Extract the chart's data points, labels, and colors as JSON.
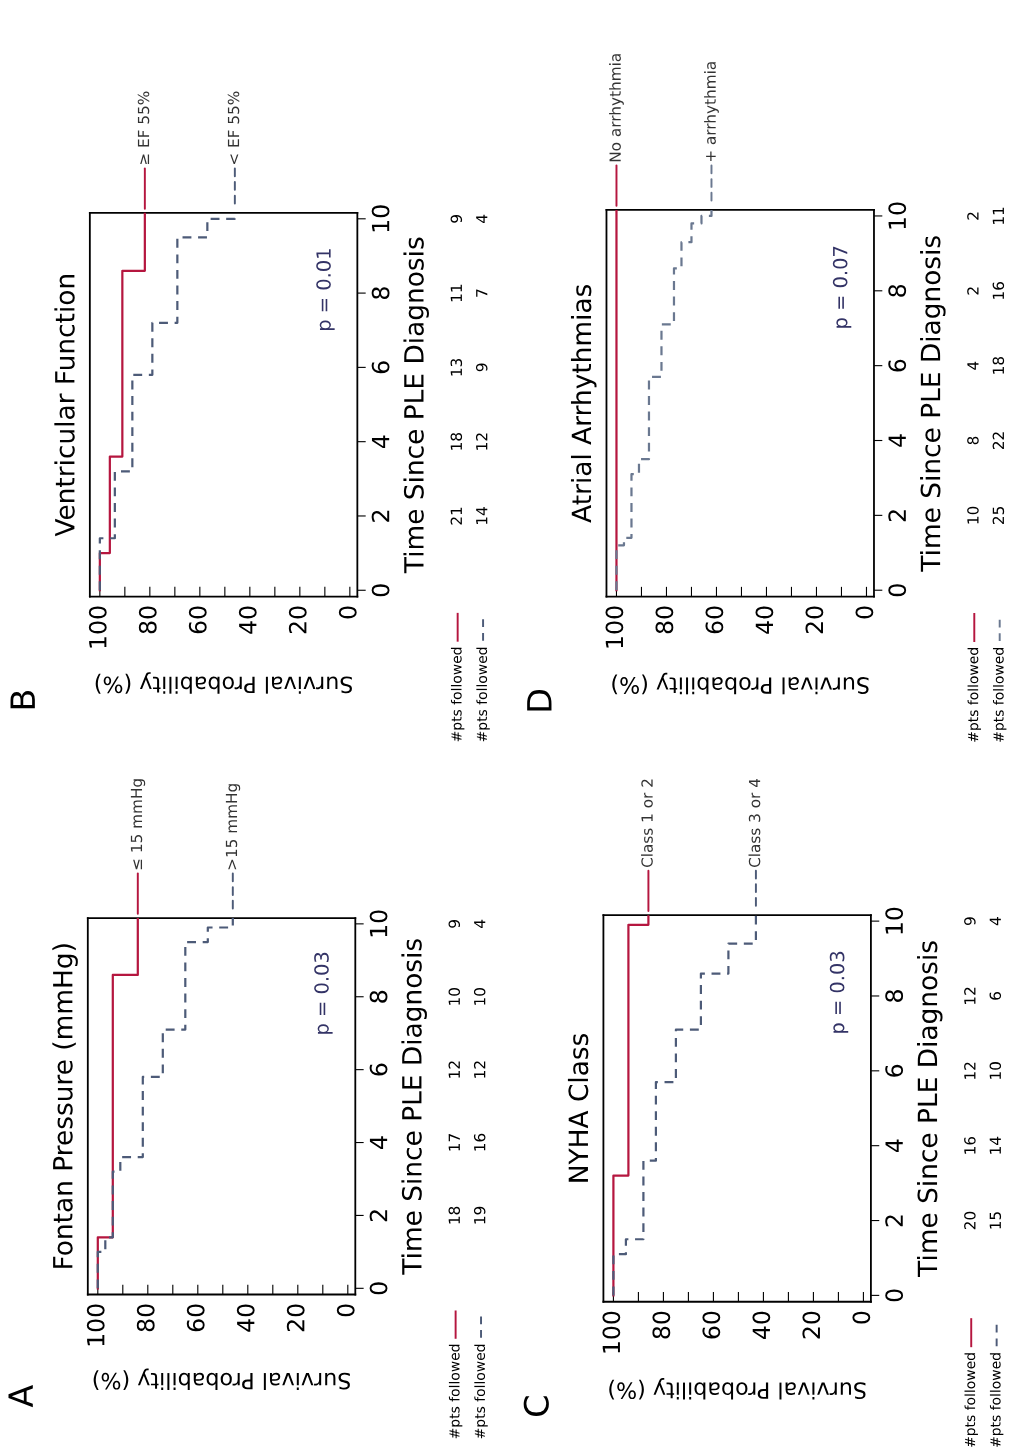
{
  "chart_data": [
    {
      "type": "step",
      "orientation": "horizontal",
      "title": "Fontan Pressure (mmHg)",
      "ylabel": "Time Since PLE Diagnosis",
      "xlabel": "Survival Probability (%)",
      "ylim": [
        -0.17,
        10.16
      ],
      "yticks": [
        0,
        2,
        4,
        6,
        8,
        10
      ],
      "xlim": [
        104,
        -3
      ],
      "xticks": [
        0,
        20,
        40,
        60,
        80,
        100,
        {
          "value": 10,
          "label": null
        },
        {
          "value": 30,
          "label": null
        },
        {
          "value": 50,
          "label": null
        },
        {
          "value": 70,
          "label": null
        },
        {
          "value": 90,
          "label": null
        }
      ],
      "legend": false,
      "grid": false,
      "series": [
        {
          "name": "≤ 15 mmHg",
          "color": "#b5163f",
          "line_style": "solid",
          "x": [
            0,
            1.4,
            8.6,
            10.16
          ],
          "values": [
            100,
            94,
            84,
            84
          ]
        },
        {
          "name": ">15 mmHg",
          "color": "#4d5b78",
          "line_style": "dashed",
          "x": [
            0,
            1.0,
            1.4,
            3.2,
            3.6,
            5.8,
            7.1,
            9.5,
            9.9,
            10.16
          ],
          "values": [
            100,
            97,
            94,
            91,
            82,
            74,
            65,
            56,
            46,
            46
          ]
        }
      ],
      "annotations": [
        "A",
        "p = 0.03",
        "#pts followed",
        "18",
        "17",
        "12",
        "10",
        "9",
        "#pts followed",
        "19",
        "16",
        "12",
        "10",
        "4"
      ]
    },
    {
      "type": "step",
      "orientation": "horizontal",
      "title": "Ventricular Function",
      "ylabel": "Time Since PLE Diagnosis",
      "xlabel": "Survival Probability (%)",
      "ylim": [
        -0.17,
        10.16
      ],
      "yticks": [
        0,
        2,
        4,
        6,
        8,
        10
      ],
      "xlim": [
        104,
        -3
      ],
      "xticks": [
        0,
        20,
        40,
        60,
        80,
        100,
        {
          "value": 10,
          "label": null
        },
        {
          "value": 30,
          "label": null
        },
        {
          "value": 50,
          "label": null
        },
        {
          "value": 70,
          "label": null
        },
        {
          "value": 90,
          "label": null
        }
      ],
      "legend": false,
      "grid": false,
      "series": [
        {
          "name": "≥ EF 55%",
          "color": "#b5163f",
          "line_style": "solid",
          "x": [
            0,
            1.0,
            3.6,
            8.6,
            10.16
          ],
          "values": [
            100,
            96,
            91,
            82,
            82
          ]
        },
        {
          "name": "< EF 55%",
          "color": "#4d5b78",
          "line_style": "dashed",
          "x": [
            0,
            1.4,
            3.2,
            5.8,
            7.2,
            9.5,
            10.0,
            10.16
          ],
          "values": [
            100,
            94,
            87,
            79,
            69,
            57,
            46,
            46
          ]
        }
      ],
      "annotations": [
        "B",
        "p = 0.01",
        "#pts followed",
        "21",
        "18",
        "13",
        "11",
        "9",
        "#pts followed",
        "14",
        "12",
        "9",
        "7",
        "4"
      ]
    },
    {
      "type": "step",
      "orientation": "horizontal",
      "title": "NYHA Class",
      "ylabel": "Time Since PLE Diagnosis",
      "xlabel": "Survival Probability (%)",
      "ylim": [
        -0.17,
        10.16
      ],
      "yticks": [
        0,
        2,
        4,
        6,
        8,
        10
      ],
      "xlim": [
        104,
        -3
      ],
      "xticks": [
        0,
        20,
        40,
        60,
        80,
        100,
        {
          "value": 10,
          "label": null
        },
        {
          "value": 30,
          "label": null
        },
        {
          "value": 50,
          "label": null
        },
        {
          "value": 70,
          "label": null
        },
        {
          "value": 90,
          "label": null
        }
      ],
      "legend": false,
      "grid": false,
      "series": [
        {
          "name": "Class 1 or 2",
          "color": "#b5163f",
          "line_style": "solid",
          "x": [
            0,
            3.2,
            9.9,
            10.16
          ],
          "values": [
            100,
            94,
            86,
            86
          ]
        },
        {
          "name": "Class 3 or 4",
          "color": "#4d5b78",
          "line_style": "dashed",
          "x": [
            0,
            1.1,
            1.5,
            3.6,
            5.7,
            7.1,
            8.6,
            9.4,
            10.16
          ],
          "values": [
            100,
            95,
            88,
            83,
            75,
            65,
            54,
            43,
            43
          ]
        }
      ],
      "annotations": [
        "C",
        "p = 0.03",
        "#pts followed",
        "20",
        "16",
        "12",
        "12",
        "9",
        "#pts followed",
        "15",
        "14",
        "10",
        "6",
        "4"
      ]
    },
    {
      "type": "step",
      "orientation": "horizontal",
      "title": "Atrial Arrhythmias",
      "ylabel": "Time Since PLE Diagnosis",
      "xlabel": "Survival Probability (%)",
      "ylim": [
        -0.17,
        10.16
      ],
      "yticks": [
        0,
        2,
        4,
        6,
        8,
        10
      ],
      "xlim": [
        104,
        -3
      ],
      "xticks": [
        0,
        20,
        40,
        60,
        80,
        100,
        {
          "value": 10,
          "label": null
        },
        {
          "value": 30,
          "label": null
        },
        {
          "value": 50,
          "label": null
        },
        {
          "value": 70,
          "label": null
        },
        {
          "value": 90,
          "label": null
        }
      ],
      "legend": false,
      "grid": false,
      "series": [
        {
          "name": "No arrhythmia",
          "color": "#b5163f",
          "line_style": "solid",
          "x": [
            0,
            10.16
          ],
          "values": [
            100,
            100
          ]
        },
        {
          "name": "+ arrhythmia",
          "color": "#6a7890",
          "line_style": "dashed",
          "x": [
            0,
            1.2,
            1.4,
            3.1,
            3.5,
            5.7,
            7.1,
            8.6,
            9.3,
            9.8,
            10.0,
            10.16
          ],
          "values": [
            100,
            97,
            94,
            91,
            87,
            82,
            77,
            74,
            70,
            66,
            62,
            62
          ]
        }
      ],
      "annotations": [
        "D",
        "p = 0.07",
        "#pts followed",
        "10",
        "8",
        "4",
        "2",
        "2",
        "#pts followed",
        "25",
        "22",
        "18",
        "16",
        "11"
      ]
    }
  ]
}
